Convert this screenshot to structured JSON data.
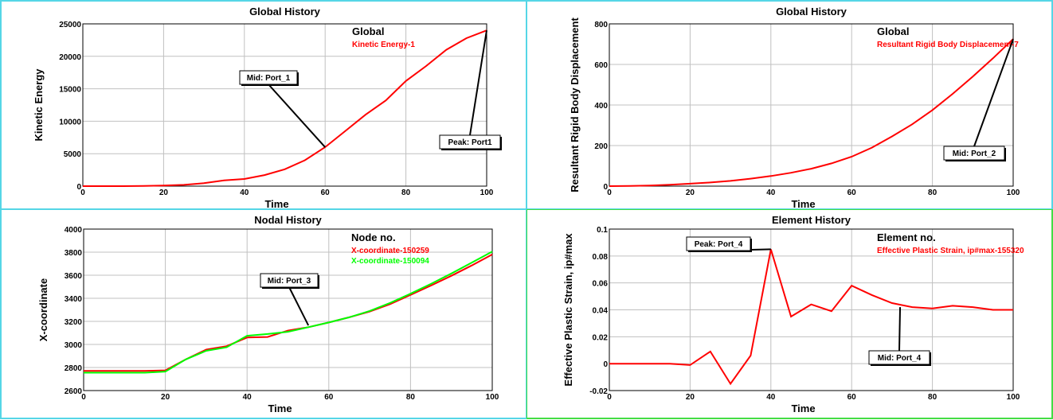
{
  "chart_data": [
    {
      "type": "line",
      "title": "Global History",
      "xlabel": "Time",
      "ylabel": "Kinetic Energy",
      "xlim": [
        0,
        100
      ],
      "ylim": [
        0,
        25000
      ],
      "xticks": [
        "0",
        "20",
        "40",
        "60",
        "80",
        "100"
      ],
      "yticks": [
        "0",
        "5000",
        "10000",
        "15000",
        "20000",
        "25000"
      ],
      "grid": true,
      "legend_title": "Global",
      "series": [
        {
          "name": "Kinetic Energy-1",
          "color": "#ff0000",
          "x": [
            0,
            5,
            10,
            15,
            20,
            25,
            30,
            35,
            40,
            45,
            50,
            55,
            60,
            65,
            70,
            75,
            80,
            85,
            90,
            95,
            100
          ],
          "y": [
            0,
            0,
            0,
            20,
            80,
            200,
            450,
            900,
            1100,
            1700,
            2600,
            4000,
            6000,
            8500,
            11000,
            13200,
            16200,
            18500,
            21000,
            22800,
            24000
          ]
        }
      ],
      "annotations": [
        {
          "text": "Mid: Port_1",
          "x": 60,
          "y": 6000
        },
        {
          "text": "Peak: Port1",
          "x": 100,
          "y": 24000
        }
      ]
    },
    {
      "type": "line",
      "title": "Global History",
      "xlabel": "Time",
      "ylabel": "Resultant Rigid Body Displacement",
      "xlim": [
        0,
        100
      ],
      "ylim": [
        0,
        800
      ],
      "xticks": [
        "0",
        "20",
        "40",
        "60",
        "80",
        "100"
      ],
      "yticks": [
        "0",
        "200",
        "400",
        "600",
        "800"
      ],
      "grid": true,
      "legend_title": "Global",
      "series": [
        {
          "name": "Resultant Rigid Body Displacement-7",
          "color": "#ff0000",
          "x": [
            0,
            5,
            10,
            15,
            20,
            25,
            30,
            35,
            40,
            45,
            50,
            55,
            60,
            65,
            70,
            75,
            80,
            85,
            90,
            95,
            100
          ],
          "y": [
            0,
            1,
            3,
            7,
            12,
            18,
            26,
            37,
            50,
            66,
            86,
            112,
            145,
            190,
            245,
            305,
            375,
            455,
            540,
            630,
            725
          ]
        }
      ],
      "annotations": [
        {
          "text": "Mid: Port_2",
          "x": 100,
          "y": 725
        }
      ]
    },
    {
      "type": "line",
      "title": "Nodal History",
      "xlabel": "Time",
      "ylabel": "X-coordinate",
      "xlim": [
        0,
        100
      ],
      "ylim": [
        2600,
        4000
      ],
      "xticks": [
        "0",
        "20",
        "40",
        "60",
        "80",
        "100"
      ],
      "yticks": [
        "2600",
        "2800",
        "3000",
        "3200",
        "3400",
        "3600",
        "3800",
        "4000"
      ],
      "grid": true,
      "legend_title": "Node no.",
      "series": [
        {
          "name": "X-coordinate-150259",
          "color": "#ff0000",
          "x": [
            0,
            5,
            10,
            15,
            20,
            25,
            30,
            35,
            40,
            45,
            50,
            55,
            60,
            65,
            70,
            75,
            80,
            85,
            90,
            95,
            100
          ],
          "y": [
            2770,
            2770,
            2770,
            2770,
            2775,
            2870,
            2955,
            2985,
            3060,
            3065,
            3120,
            3150,
            3190,
            3235,
            3285,
            3350,
            3430,
            3510,
            3595,
            3685,
            3780
          ]
        },
        {
          "name": "X-coordinate-150094",
          "color": "#00ff00",
          "x": [
            0,
            5,
            10,
            15,
            20,
            25,
            30,
            35,
            40,
            45,
            50,
            55,
            60,
            65,
            70,
            75,
            80,
            85,
            90,
            95,
            100
          ],
          "y": [
            2755,
            2755,
            2755,
            2755,
            2765,
            2870,
            2945,
            2975,
            3075,
            3090,
            3110,
            3150,
            3190,
            3235,
            3290,
            3360,
            3440,
            3525,
            3615,
            3710,
            3805
          ]
        }
      ],
      "annotations": [
        {
          "text": "Mid: Port_3",
          "x": 55,
          "y": 3165
        }
      ]
    },
    {
      "type": "line",
      "title": "Element History",
      "xlabel": "Time",
      "ylabel": "Effective Plastic Strain, ip#max",
      "xlim": [
        0,
        100
      ],
      "ylim": [
        -0.02,
        0.1
      ],
      "xticks": [
        "0",
        "20",
        "40",
        "60",
        "80",
        "100"
      ],
      "yticks": [
        "-0.02",
        "0",
        "0.02",
        "0.04",
        "0.06",
        "0.08",
        "0.1"
      ],
      "grid": true,
      "legend_title": "Element no.",
      "series": [
        {
          "name": "Effective Plastic Strain, ip#max-155320",
          "color": "#ff0000",
          "x": [
            0,
            5,
            10,
            15,
            20,
            25,
            30,
            35,
            40,
            45,
            50,
            55,
            60,
            65,
            70,
            75,
            80,
            85,
            90,
            95,
            100
          ],
          "y": [
            0,
            0,
            0,
            0,
            -0.001,
            0.009,
            -0.015,
            0.006,
            0.085,
            0.035,
            0.044,
            0.039,
            0.058,
            0.051,
            0.045,
            0.042,
            0.041,
            0.043,
            0.042,
            0.04,
            0.04
          ]
        }
      ],
      "annotations": [
        {
          "text": "Peak: Port_4",
          "x": 40,
          "y": 0.085
        },
        {
          "text": "Mid: Port_4",
          "x": 72,
          "y": 0.042
        }
      ]
    }
  ]
}
